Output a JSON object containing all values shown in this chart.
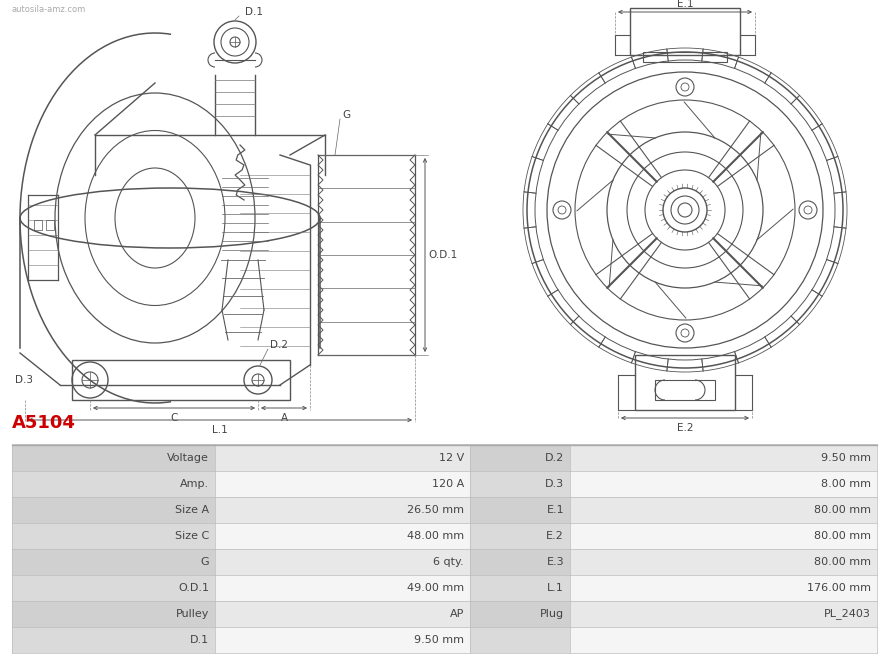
{
  "title": "A5104",
  "title_color": "#cc0000",
  "background_color": "#ffffff",
  "table_data": {
    "col1_labels": [
      "Voltage",
      "Amp.",
      "Size A",
      "Size C",
      "G",
      "O.D.1",
      "Pulley",
      "D.1"
    ],
    "col1_values": [
      "12 V",
      "120 A",
      "26.50 mm",
      "48.00 mm",
      "6 qty.",
      "49.00 mm",
      "AP",
      "9.50 mm"
    ],
    "col2_labels": [
      "D.2",
      "D.3",
      "E.1",
      "E.2",
      "E.3",
      "L.1",
      "Plug",
      ""
    ],
    "col2_values": [
      "9.50 mm",
      "8.00 mm",
      "80.00 mm",
      "80.00 mm",
      "80.00 mm",
      "176.00 mm",
      "PL_2403",
      ""
    ]
  },
  "row_colors": [
    "#e8e8e8",
    "#f5f5f5",
    "#e8e8e8",
    "#f5f5f5",
    "#e8e8e8",
    "#f5f5f5",
    "#e8e8e8",
    "#f5f5f5"
  ],
  "label_col_color": "#d8d8d8",
  "mid_col_color": "#d8d8d8",
  "line_color": "#888888",
  "text_color": "#444444",
  "dim_color": "#555555",
  "diagram_color": "#555555"
}
